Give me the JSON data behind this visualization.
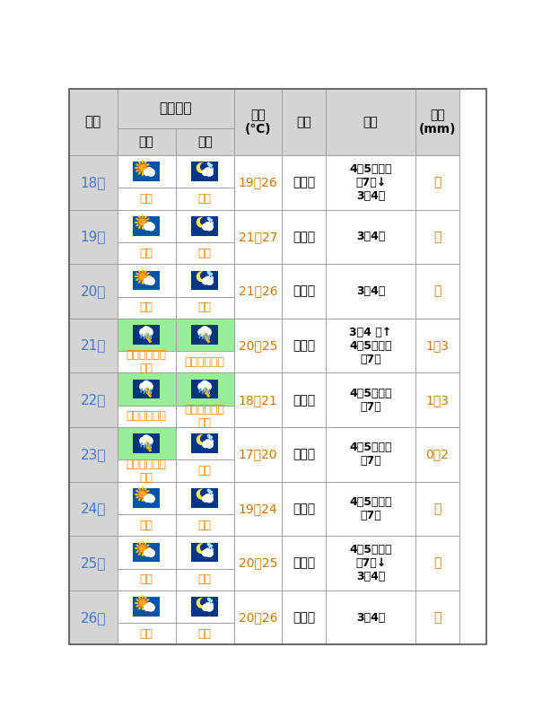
{
  "header_bg": "#d4d4d4",
  "green_bg": "#98ee98",
  "date_color": "#4477cc",
  "weather_color": "#ff8800",
  "wind_power_color": "#000000",
  "temp_color": "#cc7700",
  "rain_color": "#cc7700",
  "rows": [
    {
      "date": "18日",
      "day_img": "sunny_cloudy",
      "night_img": "moon_cloudy",
      "day_text": "多云",
      "night_text": "多云",
      "temp": "19～26",
      "wind_dir": "东北风",
      "wind_power": "4～5级、阵\n风7级↓\n3～4级",
      "rain": "无",
      "day_bg": "#ffffff",
      "night_bg": "#ffffff"
    },
    {
      "date": "19日",
      "day_img": "sunny_cloudy",
      "night_img": "moon_cloudy",
      "day_text": "多云",
      "night_text": "多云",
      "temp": "21～27",
      "wind_dir": "东北风",
      "wind_power": "3～4级",
      "rain": "无",
      "day_bg": "#ffffff",
      "night_bg": "#ffffff"
    },
    {
      "date": "20日",
      "day_img": "sunny_cloudy",
      "night_img": "moon_cloudy",
      "day_text": "多云",
      "night_text": "多云",
      "temp": "21～26",
      "wind_dir": "东北风",
      "wind_power": "3～4级",
      "rain": "无",
      "day_bg": "#ffffff",
      "night_bg": "#ffffff"
    },
    {
      "date": "21日",
      "day_img": "thunder_rain",
      "night_img": "thunder_rain",
      "day_text": "局部阵雨或雷\n阵雨",
      "night_text": "阵雨或雷阵雨",
      "temp": "20～25",
      "wind_dir": "东北风",
      "wind_power": "3～4 级↑\n4～5级、阵\n风7级",
      "rain": "1～3",
      "day_bg": "#98ee98",
      "night_bg": "#98ee98"
    },
    {
      "date": "22日",
      "day_img": "thunder_rain",
      "night_img": "thunder_rain",
      "day_text": "阵雨或雷阵雨",
      "night_text": "局部阵雨或雷\n阵雨",
      "temp": "18～21",
      "wind_dir": "东北风",
      "wind_power": "4～5级、阵\n风7级",
      "rain": "1～3",
      "day_bg": "#98ee98",
      "night_bg": "#98ee98"
    },
    {
      "date": "23日",
      "day_img": "thunder_rain",
      "night_img": "moon_cloudy",
      "day_text": "局部阵雨或雷\n阵雨",
      "night_text": "多云",
      "temp": "17～20",
      "wind_dir": "东北风",
      "wind_power": "4～5级、阵\n风7级",
      "rain": "0～2",
      "day_bg": "#98ee98",
      "night_bg": "#ffffff"
    },
    {
      "date": "24日",
      "day_img": "sunny_cloudy",
      "night_img": "moon_cloudy",
      "day_text": "多云",
      "night_text": "多云",
      "temp": "19～24",
      "wind_dir": "东北风",
      "wind_power": "4～5级、阵\n风7级",
      "rain": "无",
      "day_bg": "#ffffff",
      "night_bg": "#ffffff"
    },
    {
      "date": "25日",
      "day_img": "sunny_cloudy",
      "night_img": "moon_cloudy",
      "day_text": "多云",
      "night_text": "多云",
      "temp": "20～25",
      "wind_dir": "东北风",
      "wind_power": "4～5级、阵\n风7级↓\n3～4级",
      "rain": "无",
      "day_bg": "#ffffff",
      "night_bg": "#ffffff"
    },
    {
      "date": "26日",
      "day_img": "sunny_cloudy",
      "night_img": "moon_cloudy",
      "day_text": "多云",
      "night_text": "多云",
      "temp": "20～26",
      "wind_dir": "东北风",
      "wind_power": "3～4级",
      "rain": "无",
      "day_bg": "#ffffff",
      "night_bg": "#ffffff"
    }
  ]
}
